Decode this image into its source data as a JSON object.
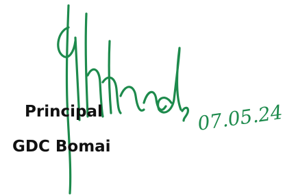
{
  "signature": {
    "designation": "Principal",
    "institution": "GDC Bomai",
    "date": "07.05.24"
  }
}
